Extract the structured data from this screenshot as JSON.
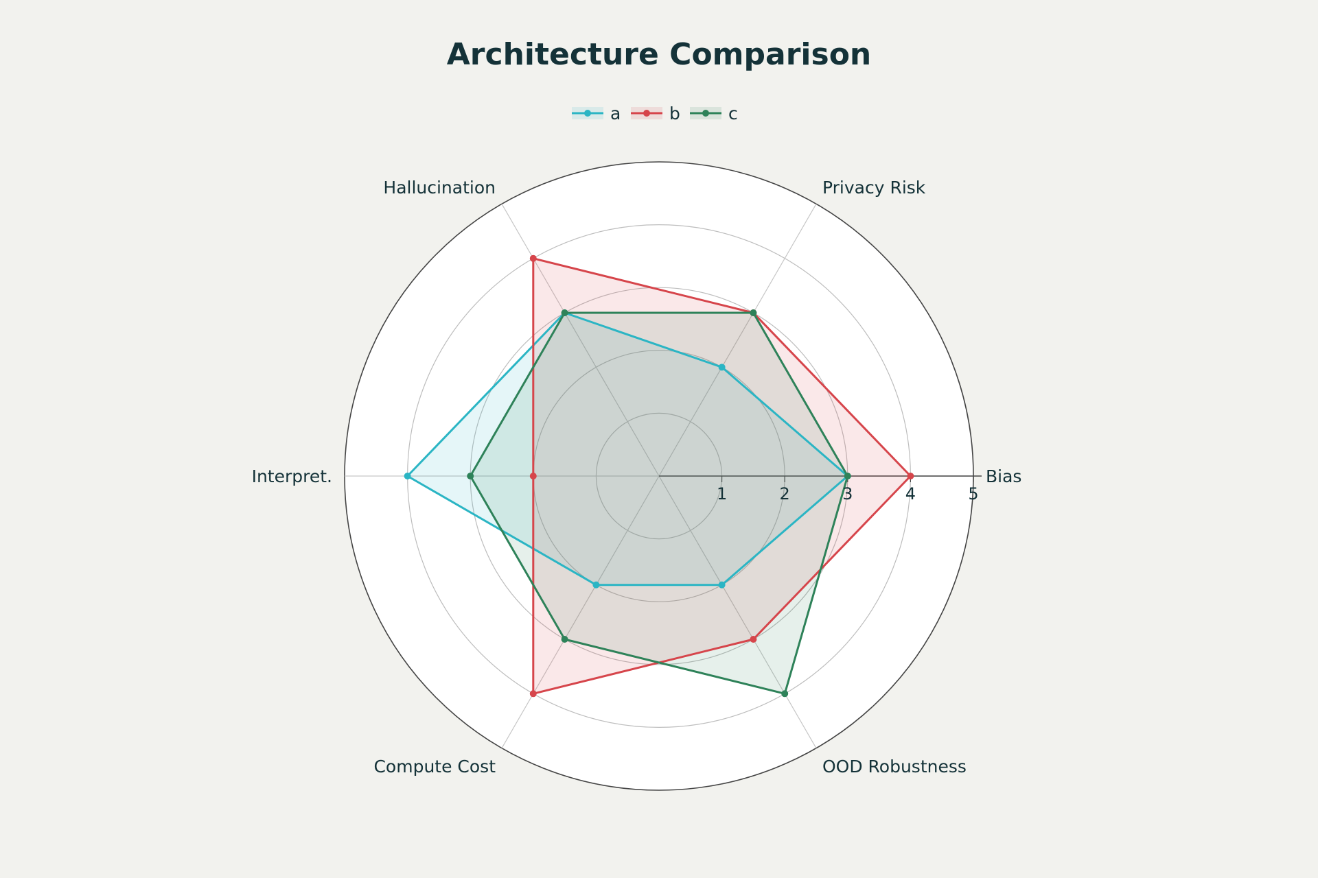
{
  "chart_data": {
    "type": "radar",
    "title": "Architecture Comparison",
    "axes": [
      "Bias",
      "Privacy Risk",
      "Hallucination",
      "Interpret.",
      "Compute Cost",
      "OOD Robustness"
    ],
    "radial_range": [
      0,
      5
    ],
    "radial_ticks": [
      "1",
      "2",
      "3",
      "4",
      "5"
    ],
    "legend_position": "top-center",
    "grid": true,
    "series": [
      {
        "name": "a",
        "color": "#2bb5c4",
        "values": [
          3,
          2,
          3,
          4,
          2,
          2
        ]
      },
      {
        "name": "b",
        "color": "#d6454b",
        "values": [
          4,
          3,
          4,
          2,
          4,
          3
        ]
      },
      {
        "name": "c",
        "color": "#2e8259",
        "values": [
          3,
          3,
          3,
          3,
          3,
          4
        ]
      }
    ]
  }
}
